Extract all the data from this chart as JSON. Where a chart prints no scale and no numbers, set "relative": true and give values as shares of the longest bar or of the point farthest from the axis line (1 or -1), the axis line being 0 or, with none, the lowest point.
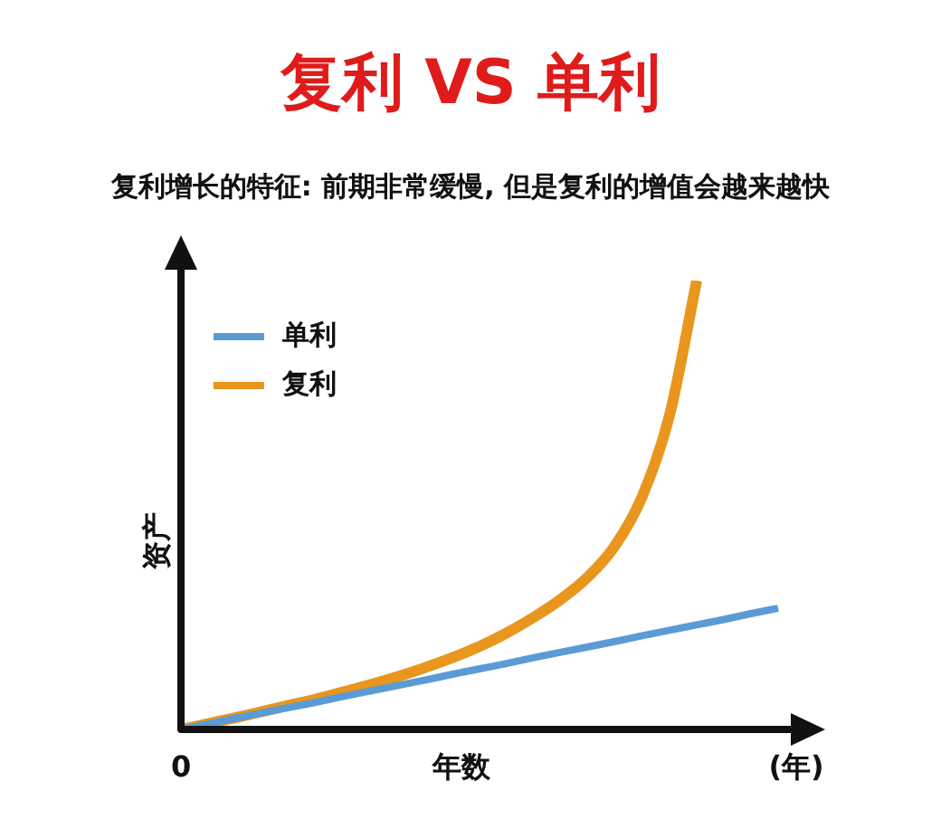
{
  "chart_data": {
    "type": "line",
    "relative": true,
    "title": "复利 VS 单利",
    "subtitle": "复利增长的特征: 前期非常缓慢, 但是复利的增值会越来越快",
    "xlabel": "年数",
    "ylabel": "资产",
    "annotations": [
      "0",
      "(年)"
    ],
    "grid": false,
    "legend": "top left",
    "marker": "none",
    "line_style": "solid",
    "categories": [
      null,
      null,
      null,
      null,
      null,
      null,
      null,
      null,
      null,
      null,
      null,
      null,
      null,
      null,
      null,
      null,
      null,
      null,
      null,
      null,
      null,
      null,
      null
    ],
    "series": [
      {
        "name": "单利",
        "color": "#5b9bd5",
        "values": [
          0,
          0.012,
          0.025,
          0.037,
          0.049,
          0.061,
          0.074,
          0.086,
          0.098,
          0.11,
          0.123,
          0.135,
          0.147,
          0.16,
          0.172,
          0.184,
          0.196,
          0.209,
          0.221,
          0.233,
          0.245,
          0.258,
          0.27
        ]
      },
      {
        "name": "复利",
        "color": "#e8961e",
        "values": [
          0,
          0.013,
          0.026,
          0.04,
          0.054,
          0.068,
          0.084,
          0.1,
          0.118,
          0.138,
          0.16,
          0.185,
          0.215,
          0.25,
          0.29,
          0.34,
          0.41,
          0.52,
          0.7,
          1,
          null,
          null,
          null
        ]
      }
    ]
  }
}
